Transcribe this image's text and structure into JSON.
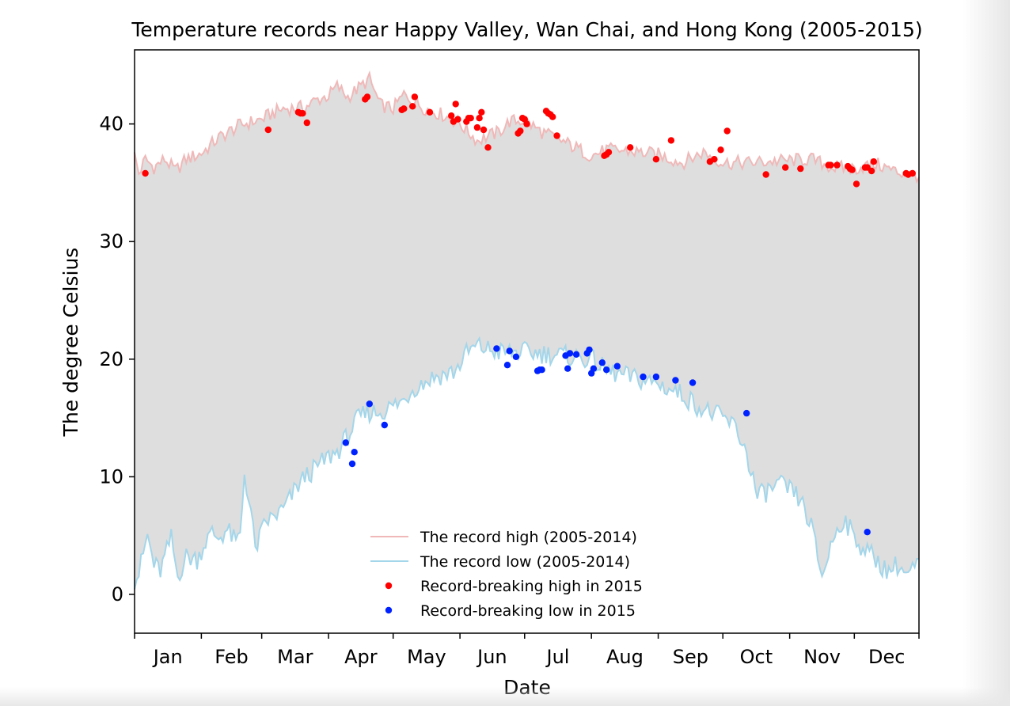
{
  "chart_data": {
    "type": "line",
    "title": "Temperature records near Happy Valley, Wan Chai, and Hong Kong (2005-2015)",
    "xlabel": "Date",
    "ylabel": "The degree Celsius",
    "xlim": [
      1,
      365
    ],
    "ylim": [
      -3.3,
      46.3
    ],
    "yticks": [
      0,
      10,
      20,
      30,
      40
    ],
    "months": [
      "Jan",
      "Feb",
      "Mar",
      "Apr",
      "May",
      "Jun",
      "Jul",
      "Aug",
      "Sep",
      "Oct",
      "Nov",
      "Dec"
    ],
    "month_boundaries": [
      1,
      32,
      60,
      91,
      121,
      152,
      182,
      213,
      244,
      274,
      305,
      335,
      365
    ],
    "fill_between": true,
    "legend_position": "lower-center",
    "legend": {
      "high_line": "The record high (2005-2014)",
      "low_line": "The record low (2005-2014)",
      "high_points": "Record-breaking high in 2015",
      "low_points": "Record-breaking low in 2015"
    },
    "colors": {
      "high": "#f0b8b8",
      "low": "#a3d6ea",
      "fill": "#dedede",
      "high_points": "#ff0000",
      "low_points": "#0022ff"
    },
    "record_high_keypoints": [
      [
        1,
        37.3
      ],
      [
        3,
        35.8
      ],
      [
        6,
        37.0
      ],
      [
        10,
        36.3
      ],
      [
        15,
        37.0
      ],
      [
        20,
        36.0
      ],
      [
        25,
        37.0
      ],
      [
        32,
        37.5
      ],
      [
        40,
        38.8
      ],
      [
        50,
        39.9
      ],
      [
        60,
        40.4
      ],
      [
        65,
        40.9
      ],
      [
        70,
        41.3
      ],
      [
        80,
        41.4
      ],
      [
        85,
        42.0
      ],
      [
        91,
        42.4
      ],
      [
        95,
        43.2
      ],
      [
        100,
        42.3
      ],
      [
        110,
        43.8
      ],
      [
        115,
        41.6
      ],
      [
        121,
        41.3
      ],
      [
        126,
        42.5
      ],
      [
        135,
        41.4
      ],
      [
        145,
        40.7
      ],
      [
        152,
        40.0
      ],
      [
        160,
        38.6
      ],
      [
        170,
        39.3
      ],
      [
        175,
        40.2
      ],
      [
        182,
        40.3
      ],
      [
        190,
        39.3
      ],
      [
        200,
        38.5
      ],
      [
        213,
        37.3
      ],
      [
        220,
        37.8
      ],
      [
        230,
        37.7
      ],
      [
        244,
        37.4
      ],
      [
        255,
        36.7
      ],
      [
        265,
        37.6
      ],
      [
        274,
        36.7
      ],
      [
        285,
        36.7
      ],
      [
        295,
        36.8
      ],
      [
        305,
        36.9
      ],
      [
        315,
        37.0
      ],
      [
        325,
        36.3
      ],
      [
        335,
        36.2
      ],
      [
        345,
        36.6
      ],
      [
        355,
        35.9
      ],
      [
        365,
        35.6
      ]
    ],
    "record_low_keypoints": [
      [
        1,
        1.2
      ],
      [
        3,
        1.8
      ],
      [
        7,
        5.0
      ],
      [
        10,
        2.5
      ],
      [
        13,
        2.0
      ],
      [
        18,
        4.8
      ],
      [
        21,
        1.5
      ],
      [
        25,
        3.2
      ],
      [
        30,
        3.0
      ],
      [
        34,
        4.5
      ],
      [
        37,
        5.2
      ],
      [
        40,
        4.8
      ],
      [
        44,
        5.5
      ],
      [
        48,
        4.4
      ],
      [
        50,
        5.0
      ],
      [
        52,
        10.3
      ],
      [
        55,
        7.0
      ],
      [
        57,
        3.8
      ],
      [
        62,
        6.2
      ],
      [
        65,
        6.5
      ],
      [
        70,
        7.2
      ],
      [
        77,
        9.3
      ],
      [
        80,
        10.0
      ],
      [
        85,
        10.7
      ],
      [
        91,
        11.7
      ],
      [
        95,
        12.1
      ],
      [
        100,
        13.5
      ],
      [
        105,
        15.0
      ],
      [
        110,
        15.5
      ],
      [
        115,
        15.5
      ],
      [
        121,
        16.0
      ],
      [
        126,
        16.5
      ],
      [
        130,
        17.5
      ],
      [
        135,
        18.0
      ],
      [
        140,
        18.5
      ],
      [
        145,
        18.7
      ],
      [
        150,
        19.0
      ],
      [
        155,
        20.5
      ],
      [
        160,
        21.1
      ],
      [
        170,
        20.6
      ],
      [
        182,
        20.6
      ],
      [
        190,
        20.5
      ],
      [
        200,
        20.3
      ],
      [
        213,
        20.0
      ],
      [
        220,
        19.0
      ],
      [
        230,
        18.5
      ],
      [
        244,
        17.9
      ],
      [
        255,
        17.0
      ],
      [
        265,
        15.7
      ],
      [
        274,
        15.0
      ],
      [
        280,
        14.2
      ],
      [
        285,
        12.0
      ],
      [
        290,
        8.3
      ],
      [
        295,
        8.8
      ],
      [
        300,
        9.3
      ],
      [
        305,
        8.9
      ],
      [
        310,
        8.0
      ],
      [
        315,
        5.8
      ],
      [
        320,
        1.5
      ],
      [
        325,
        4.7
      ],
      [
        330,
        6.5
      ],
      [
        335,
        4.8
      ],
      [
        340,
        3.8
      ],
      [
        345,
        3.0
      ],
      [
        350,
        2.0
      ],
      [
        355,
        2.5
      ],
      [
        360,
        1.6
      ],
      [
        365,
        2.7
      ]
    ],
    "record_breaking_high_2015": [
      [
        6,
        35.8
      ],
      [
        63,
        39.5
      ],
      [
        77,
        41.0
      ],
      [
        78,
        40.9
      ],
      [
        79,
        40.9
      ],
      [
        81,
        40.1
      ],
      [
        108,
        42.1
      ],
      [
        109,
        42.3
      ],
      [
        125,
        41.2
      ],
      [
        126,
        41.3
      ],
      [
        130,
        41.5
      ],
      [
        131,
        42.3
      ],
      [
        138,
        41.0
      ],
      [
        148,
        40.7
      ],
      [
        149,
        40.2
      ],
      [
        150,
        41.7
      ],
      [
        151,
        40.4
      ],
      [
        155,
        40.2
      ],
      [
        156,
        40.5
      ],
      [
        157,
        40.5
      ],
      [
        160,
        39.7
      ],
      [
        161,
        40.5
      ],
      [
        162,
        41.0
      ],
      [
        163,
        39.5
      ],
      [
        165,
        38.0
      ],
      [
        179,
        39.2
      ],
      [
        180,
        39.4
      ],
      [
        181,
        40.5
      ],
      [
        182,
        40.4
      ],
      [
        183,
        40.0
      ],
      [
        192,
        41.1
      ],
      [
        193,
        40.9
      ],
      [
        194,
        40.8
      ],
      [
        195,
        40.6
      ],
      [
        197,
        39.0
      ],
      [
        219,
        37.3
      ],
      [
        220,
        37.4
      ],
      [
        221,
        37.6
      ],
      [
        231,
        38.0
      ],
      [
        243,
        37.0
      ],
      [
        250,
        38.6
      ],
      [
        268,
        36.8
      ],
      [
        270,
        37.0
      ],
      [
        273,
        37.8
      ],
      [
        276,
        39.4
      ],
      [
        294,
        35.7
      ],
      [
        303,
        36.3
      ],
      [
        310,
        36.2
      ],
      [
        323,
        36.5
      ],
      [
        324,
        36.5
      ],
      [
        327,
        36.5
      ],
      [
        332,
        36.4
      ],
      [
        333,
        36.2
      ],
      [
        334,
        36.1
      ],
      [
        336,
        34.9
      ],
      [
        340,
        36.3
      ],
      [
        341,
        36.3
      ],
      [
        343,
        36.0
      ],
      [
        344,
        36.8
      ],
      [
        359,
        35.8
      ],
      [
        360,
        35.7
      ],
      [
        362,
        35.8
      ]
    ],
    "record_breaking_low_2015": [
      [
        99,
        12.9
      ],
      [
        102,
        11.1
      ],
      [
        103,
        12.1
      ],
      [
        110,
        16.2
      ],
      [
        117,
        14.4
      ],
      [
        169,
        20.9
      ],
      [
        174,
        19.5
      ],
      [
        175,
        20.7
      ],
      [
        178,
        20.2
      ],
      [
        188,
        19.0
      ],
      [
        189,
        19.1
      ],
      [
        190,
        19.1
      ],
      [
        201,
        20.3
      ],
      [
        202,
        19.2
      ],
      [
        203,
        20.5
      ],
      [
        206,
        20.4
      ],
      [
        211,
        20.5
      ],
      [
        212,
        20.8
      ],
      [
        213,
        18.8
      ],
      [
        214,
        19.2
      ],
      [
        218,
        19.7
      ],
      [
        220,
        19.1
      ],
      [
        225,
        19.4
      ],
      [
        237,
        18.5
      ],
      [
        243,
        18.5
      ],
      [
        252,
        18.2
      ],
      [
        260,
        18.0
      ],
      [
        285,
        15.4
      ],
      [
        341,
        5.3
      ]
    ]
  }
}
